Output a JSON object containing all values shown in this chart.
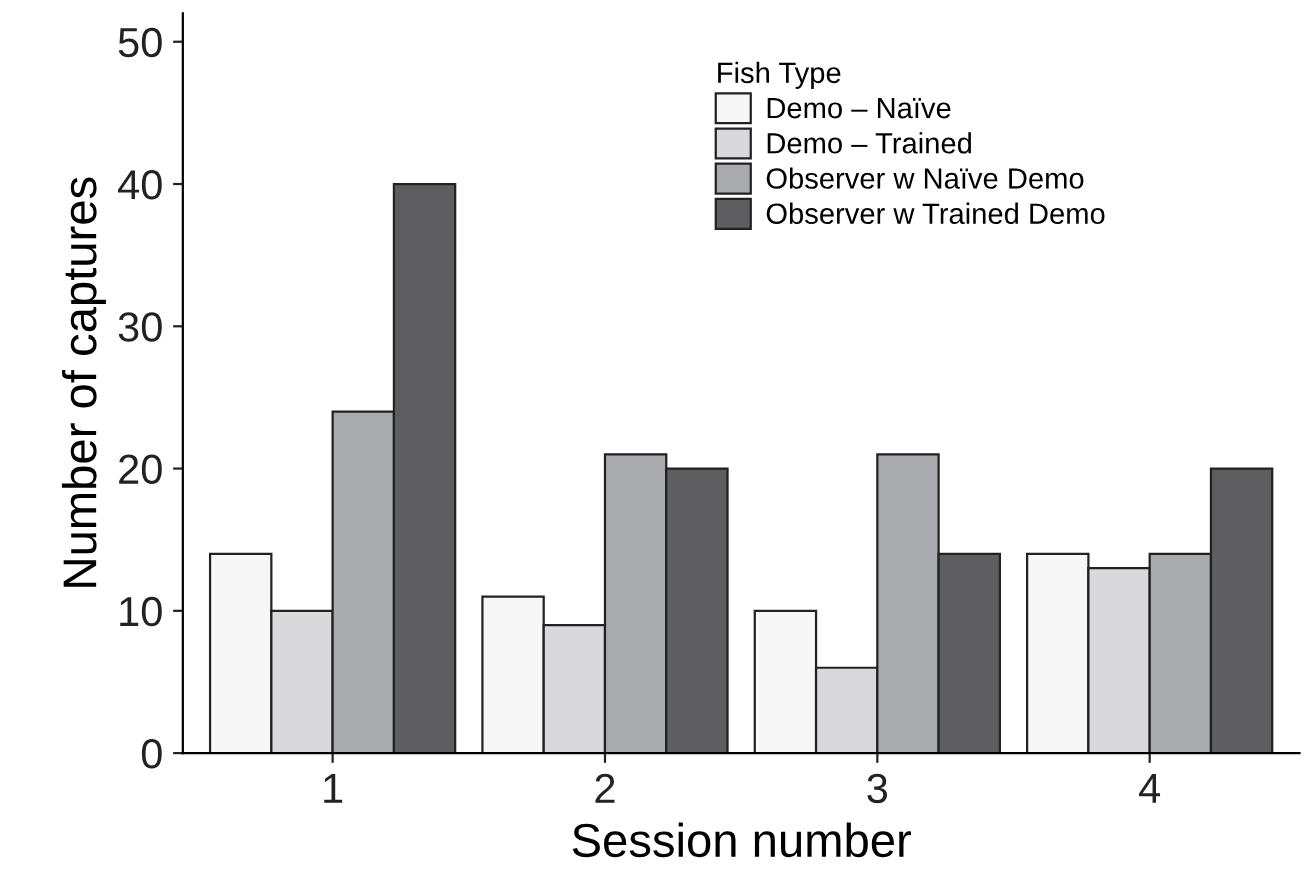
{
  "chart_data": {
    "type": "bar",
    "xlabel": "Session number",
    "ylabel": "Number of captures",
    "legend_title": "Fish Type",
    "categories": [
      "1",
      "2",
      "3",
      "4"
    ],
    "series": [
      {
        "name": "Demo – Naïve",
        "color": "#f7f7f7",
        "values": [
          14,
          11,
          10,
          14
        ]
      },
      {
        "name": "Demo – Trained",
        "color": "#d9d9db",
        "values": [
          10,
          9,
          6,
          13
        ]
      },
      {
        "name": "Observer w Naïve Demo",
        "color": "#aaabae",
        "values": [
          24,
          21,
          21,
          14
        ]
      },
      {
        "name": "Observer w Trained Demo",
        "color": "#5e5e61",
        "values": [
          40,
          20,
          14,
          20
        ]
      }
    ],
    "ylim": [
      0,
      52
    ],
    "yticks": [
      0,
      10,
      20,
      30,
      40,
      50
    ],
    "grid": false,
    "legend": "top right"
  }
}
